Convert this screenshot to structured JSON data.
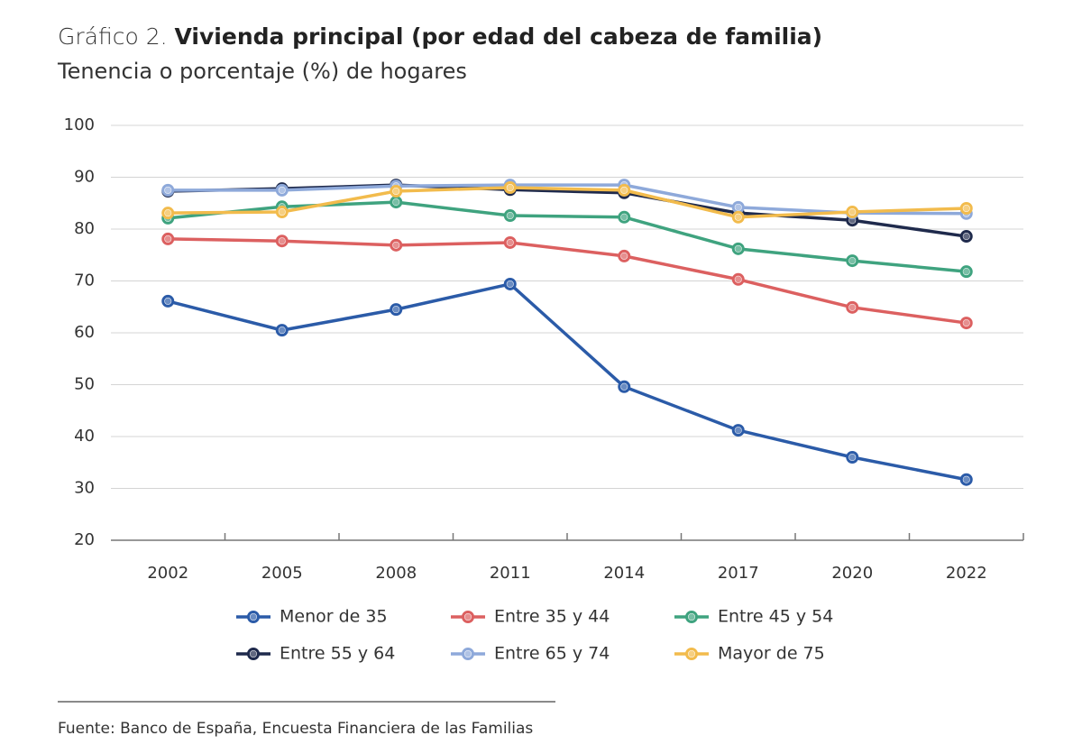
{
  "chart_data": {
    "type": "line",
    "title_label": "Gráfico 2.",
    "title": "Vivienda principal (por edad del cabeza de familia)",
    "subtitle": "Tenencia o porcentaje (%) de hogares",
    "source": "Fuente: Banco de España, Encuesta Financiera de las Familias",
    "categories": [
      "2002",
      "2005",
      "2008",
      "2011",
      "2014",
      "2017",
      "2020",
      "2022"
    ],
    "ylim": [
      20,
      100
    ],
    "yticks": [
      20,
      30,
      40,
      50,
      60,
      70,
      80,
      90,
      100
    ],
    "grid": true,
    "series": [
      {
        "name": "Menor de 35",
        "color": "#2b5ba8",
        "values": [
          66.1,
          60.5,
          64.5,
          69.4,
          49.6,
          41.2,
          36,
          31.7
        ]
      },
      {
        "name": "Entre 35 y 44",
        "color": "#dc6060",
        "values": [
          78.1,
          77.7,
          76.9,
          77.4,
          74.8,
          70.3,
          64.9,
          61.9
        ]
      },
      {
        "name": "Entre 45 y 54",
        "color": "#3fa37f",
        "values": [
          82.1,
          84.3,
          85.2,
          82.6,
          82.3,
          76.2,
          73.9,
          71.8
        ]
      },
      {
        "name": "Entre 55 y 64",
        "color": "#1f2a4c",
        "values": [
          87.3,
          87.8,
          88.5,
          87.6,
          87,
          83.1,
          81.7,
          78.6
        ]
      },
      {
        "name": "Entre 65 y 74",
        "color": "#8ea9da",
        "values": [
          87.5,
          87.5,
          88.3,
          88.5,
          88.5,
          84.2,
          83.1,
          83
        ]
      },
      {
        "name": "Mayor de 75",
        "color": "#f2bb4c",
        "values": [
          83.1,
          83.3,
          87.3,
          88,
          87.5,
          82.3,
          83.3,
          84
        ]
      }
    ]
  }
}
